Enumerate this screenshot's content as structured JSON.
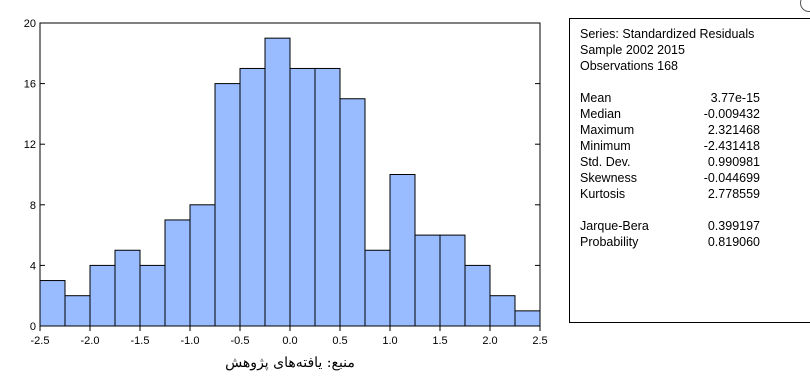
{
  "stats": {
    "header": [
      "Series: Standardized Residuals",
      "Sample 2002 2015",
      "Observations 168"
    ],
    "summary": [
      {
        "label": "Mean",
        "value": "3.77e-15"
      },
      {
        "label": "Median",
        "value": "-0.009432"
      },
      {
        "label": "Maximum",
        "value": "2.321468"
      },
      {
        "label": "Minimum",
        "value": "-2.431418"
      },
      {
        "label": "Std. Dev.",
        "value": "0.990981"
      },
      {
        "label": "Skewness",
        "value": "-0.044699"
      },
      {
        "label": "Kurtosis",
        "value": "2.778559"
      }
    ],
    "tests": [
      {
        "label": "Jarque-Bera",
        "value": "0.399197"
      },
      {
        "label": "Probability",
        "value": "0.819060"
      }
    ]
  },
  "source_note": "منبع: یافته‌های پژوهش",
  "chart_data": {
    "type": "bar",
    "bin_width": 0.25,
    "bin_starts": [
      -2.5,
      -2.25,
      -2.0,
      -1.75,
      -1.5,
      -1.25,
      -1.0,
      -0.75,
      -0.5,
      -0.25,
      0.0,
      0.25,
      0.5,
      0.75,
      1.0,
      1.25,
      1.5,
      1.75,
      2.0,
      2.25
    ],
    "values": [
      3,
      2,
      4,
      5,
      4,
      7,
      8,
      16,
      17,
      19,
      17,
      17,
      15,
      5,
      10,
      6,
      6,
      4,
      2,
      1
    ],
    "xlim": [
      -2.5,
      2.5
    ],
    "ylim": [
      0,
      20
    ],
    "x_ticks": [
      "-2.5",
      "-2.0",
      "-1.5",
      "-1.0",
      "-0.5",
      "0.0",
      "0.5",
      "1.0",
      "1.5",
      "2.0",
      "2.5"
    ],
    "y_ticks": [
      "0",
      "4",
      "8",
      "12",
      "16",
      "20"
    ],
    "bar_color": "#99BBFF",
    "bar_edge_color": "#000000",
    "grid": false,
    "legend": false
  }
}
